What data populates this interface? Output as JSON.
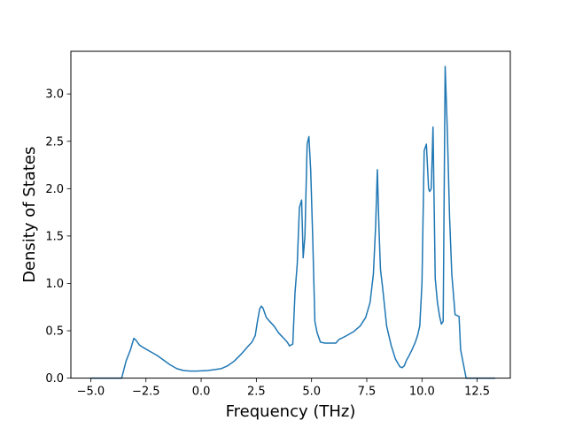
{
  "chart_data": {
    "type": "line",
    "title": "",
    "xlabel": "Frequency (THz)",
    "ylabel": "Density of States",
    "xlim": [
      -5.9,
      14.0
    ],
    "ylim": [
      0.0,
      3.45
    ],
    "xticks": [
      -5.0,
      -2.5,
      0.0,
      2.5,
      5.0,
      7.5,
      10.0,
      12.5
    ],
    "xtick_labels": [
      "−5.0",
      "−2.5",
      "0.0",
      "2.5",
      "5.0",
      "7.5",
      "10.0",
      "12.5"
    ],
    "yticks": [
      0.0,
      0.5,
      1.0,
      1.5,
      2.0,
      2.5,
      3.0
    ],
    "ytick_labels": [
      "0.0",
      "0.5",
      "1.0",
      "1.5",
      "2.0",
      "2.5",
      "3.0"
    ],
    "grid": false,
    "legend": false,
    "series": [
      {
        "color": "#1f77b4",
        "x": [
          -5.0,
          -4.5,
          -4.0,
          -3.6,
          -3.4,
          -3.2,
          -3.05,
          -2.95,
          -2.8,
          -2.6,
          -2.3,
          -2.0,
          -1.7,
          -1.4,
          -1.1,
          -0.8,
          -0.5,
          -0.2,
          0.0,
          0.3,
          0.6,
          0.9,
          1.2,
          1.5,
          1.8,
          2.1,
          2.3,
          2.45,
          2.55,
          2.65,
          2.72,
          2.8,
          2.95,
          3.1,
          3.3,
          3.5,
          3.7,
          3.9,
          4.0,
          4.15,
          4.25,
          4.35,
          4.45,
          4.55,
          4.62,
          4.7,
          4.8,
          4.88,
          4.96,
          5.05,
          5.15,
          5.25,
          5.4,
          5.6,
          5.9,
          6.1,
          6.25,
          6.35,
          6.6,
          6.9,
          7.2,
          7.45,
          7.65,
          7.8,
          7.9,
          7.98,
          8.05,
          8.12,
          8.22,
          8.4,
          8.6,
          8.8,
          9.0,
          9.1,
          9.2,
          9.3,
          9.4,
          9.55,
          9.7,
          9.8,
          9.9,
          10.0,
          10.1,
          10.2,
          10.3,
          10.35,
          10.42,
          10.5,
          10.6,
          10.7,
          10.8,
          10.88,
          10.96,
          11.05,
          11.15,
          11.25,
          11.35,
          11.5,
          11.6,
          11.68,
          11.75,
          12.0,
          12.5,
          13.0,
          13.3
        ],
        "y": [
          0.0,
          0.0,
          0.0,
          0.0,
          0.18,
          0.3,
          0.42,
          0.4,
          0.35,
          0.32,
          0.28,
          0.24,
          0.19,
          0.14,
          0.1,
          0.08,
          0.075,
          0.075,
          0.077,
          0.08,
          0.09,
          0.1,
          0.13,
          0.18,
          0.25,
          0.33,
          0.38,
          0.45,
          0.6,
          0.73,
          0.76,
          0.74,
          0.64,
          0.6,
          0.55,
          0.48,
          0.43,
          0.38,
          0.34,
          0.36,
          0.9,
          1.2,
          1.8,
          1.88,
          1.27,
          1.5,
          2.47,
          2.55,
          2.2,
          1.5,
          0.6,
          0.48,
          0.38,
          0.37,
          0.37,
          0.37,
          0.41,
          0.42,
          0.45,
          0.49,
          0.55,
          0.64,
          0.8,
          1.1,
          1.6,
          2.2,
          1.6,
          1.15,
          0.95,
          0.55,
          0.35,
          0.2,
          0.12,
          0.11,
          0.13,
          0.19,
          0.23,
          0.3,
          0.38,
          0.45,
          0.55,
          1.0,
          2.4,
          2.47,
          2.0,
          1.97,
          2.0,
          2.65,
          1.05,
          0.8,
          0.65,
          0.57,
          0.6,
          3.29,
          2.6,
          1.7,
          1.1,
          0.67,
          0.66,
          0.65,
          0.3,
          0.0,
          0.0,
          0.0,
          0.0
        ]
      }
    ]
  }
}
